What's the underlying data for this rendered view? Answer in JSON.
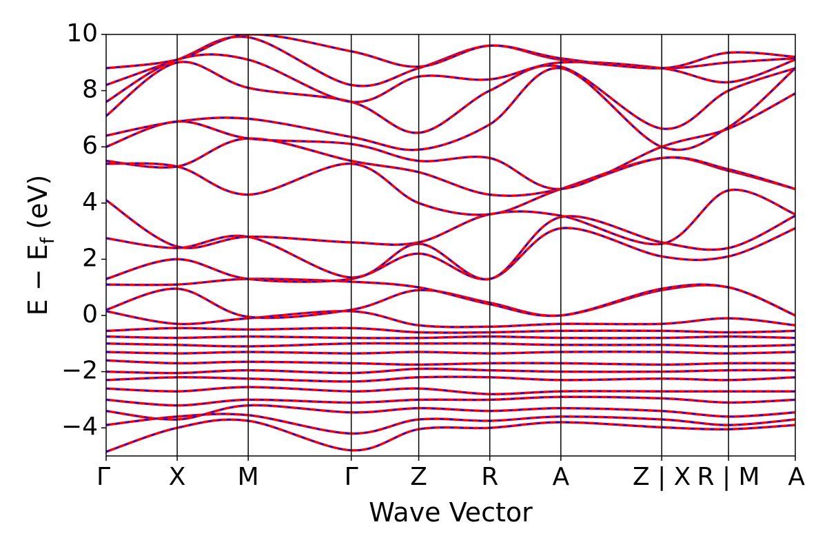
{
  "chart_data": {
    "type": "line",
    "title": "",
    "xlabel": "Wave Vector",
    "ylabel": "E − E_f (eV)",
    "ylabel_parts": {
      "main": "E − E",
      "sub": "f",
      "unit": " (eV)"
    },
    "ylim": [
      -5,
      10
    ],
    "yticks": [
      -4,
      -2,
      0,
      2,
      4,
      6,
      8,
      10
    ],
    "ytick_labels": [
      "−4",
      "−2",
      "0",
      "2",
      "4",
      "6",
      "8",
      "10"
    ],
    "kpath_positions": [
      0,
      1,
      2,
      3.45,
      4.4,
      5.4,
      6.4,
      7.82,
      8.76,
      9.7
    ],
    "kpath_labels": [
      "Γ",
      "X",
      "M",
      "Γ",
      "Z",
      "R",
      "A",
      "Z | X",
      "R | M",
      "A"
    ],
    "grid": false,
    "legend": "none",
    "series": [
      {
        "style": "solid",
        "color": "#ff0000"
      },
      {
        "style": "dashed",
        "color": "#0000ff"
      }
    ],
    "bands": [
      [
        -4.85,
        -4.0,
        -3.75,
        -4.8,
        -4.05,
        -4.0,
        -3.8,
        -3.98,
        -4.05,
        -3.9
      ],
      [
        -3.9,
        -3.6,
        -3.55,
        -4.2,
        -3.7,
        -3.75,
        -3.6,
        -3.7,
        -3.9,
        -3.7
      ],
      [
        -3.4,
        -3.7,
        -3.2,
        -3.45,
        -3.3,
        -3.4,
        -3.3,
        -3.4,
        -3.6,
        -3.45
      ],
      [
        -3.0,
        -3.2,
        -3.0,
        -3.1,
        -3.0,
        -3.0,
        -2.9,
        -2.95,
        -3.1,
        -3.0
      ],
      [
        -2.6,
        -2.7,
        -2.55,
        -2.7,
        -2.6,
        -2.8,
        -2.7,
        -2.7,
        -2.7,
        -2.7
      ],
      [
        -2.3,
        -2.2,
        -2.25,
        -2.35,
        -2.2,
        -2.2,
        -2.3,
        -2.25,
        -2.3,
        -2.2
      ],
      [
        -2.0,
        -2.05,
        -1.95,
        -2.05,
        -1.9,
        -1.95,
        -2.0,
        -2.0,
        -1.95,
        -1.95
      ],
      [
        -1.6,
        -1.7,
        -1.65,
        -1.7,
        -1.75,
        -1.7,
        -1.7,
        -1.75,
        -1.7,
        -1.7
      ],
      [
        -1.3,
        -1.35,
        -1.3,
        -1.35,
        -1.3,
        -1.35,
        -1.3,
        -1.3,
        -1.35,
        -1.3
      ],
      [
        -1.0,
        -1.05,
        -1.1,
        -1.0,
        -1.0,
        -1.0,
        -1.05,
        -1.05,
        -1.1,
        -1.05
      ],
      [
        -0.75,
        -0.8,
        -0.75,
        -0.8,
        -0.8,
        -0.75,
        -0.8,
        -0.8,
        -0.75,
        -0.8
      ],
      [
        -0.55,
        -0.45,
        -0.5,
        -0.45,
        -0.6,
        -0.6,
        -0.55,
        -0.55,
        -0.6,
        -0.55
      ],
      [
        0.15,
        -0.3,
        -0.1,
        0.15,
        -0.35,
        -0.4,
        -0.3,
        -0.3,
        -0.1,
        -0.35
      ],
      [
        0.2,
        0.95,
        -0.05,
        0.2,
        0.9,
        0.45,
        0.0,
        0.9,
        1.0,
        0.0
      ],
      [
        1.1,
        1.1,
        1.3,
        1.2,
        1.0,
        0.4,
        0.0,
        0.95,
        1.0,
        0.0
      ],
      [
        1.3,
        2.0,
        1.3,
        1.3,
        2.2,
        1.3,
        3.1,
        2.1,
        2.1,
        3.1
      ],
      [
        2.75,
        2.4,
        2.8,
        1.35,
        2.55,
        1.3,
        3.5,
        2.6,
        2.4,
        3.55
      ],
      [
        4.1,
        2.45,
        2.8,
        2.6,
        2.6,
        3.6,
        3.55,
        2.55,
        4.45,
        3.6
      ],
      [
        5.4,
        5.3,
        4.3,
        5.4,
        4.0,
        3.6,
        4.5,
        5.6,
        5.15,
        4.5
      ],
      [
        5.5,
        5.3,
        6.3,
        5.5,
        5.1,
        4.3,
        4.5,
        5.6,
        5.2,
        4.5
      ],
      [
        6.0,
        6.9,
        6.3,
        6.1,
        5.5,
        5.6,
        4.5,
        6.0,
        6.65,
        7.9
      ],
      [
        6.4,
        6.9,
        7.0,
        6.35,
        5.9,
        6.8,
        8.8,
        6.0,
        6.7,
        8.8
      ],
      [
        7.1,
        9.0,
        8.1,
        7.6,
        6.5,
        8.0,
        8.85,
        6.65,
        8.0,
        8.8
      ],
      [
        7.6,
        9.1,
        9.1,
        7.6,
        8.5,
        8.4,
        9.0,
        8.8,
        8.3,
        9.1
      ],
      [
        8.2,
        9.1,
        9.9,
        8.2,
        8.8,
        9.6,
        9.1,
        8.8,
        9.0,
        9.15
      ],
      [
        8.8,
        9.1,
        10.0,
        9.4,
        8.85,
        9.6,
        9.15,
        8.8,
        9.35,
        9.2
      ]
    ]
  }
}
